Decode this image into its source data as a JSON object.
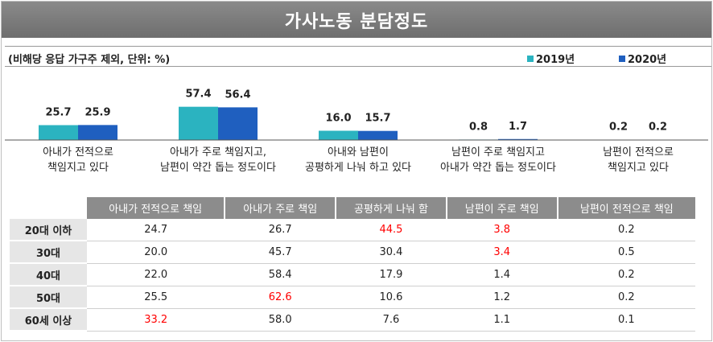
{
  "title": "가사노동 분담정도",
  "subtitle": "(비해당 응답 가구주 제외, 단위: %)",
  "colors": {
    "series_2019": "#2bb3c0",
    "series_2020": "#1f5fbf",
    "highlight": "#ff0000",
    "header_bg": "#8c8c8c"
  },
  "chart_data": {
    "type": "bar",
    "categories": [
      [
        "아내가 전적으로",
        "책임지고 있다"
      ],
      [
        "아내가 주로 책임지고,",
        "남편이 약간 돕는 정도이다"
      ],
      [
        "아내와 남편이",
        "공평하게 나눠 하고 있다"
      ],
      [
        "남편이 주로 책임지고",
        "아내가 약간 돕는 정도이다"
      ],
      [
        "남편이 전적으로",
        "책임지고 있다"
      ]
    ],
    "series": [
      {
        "name": "2019년",
        "values": [
          25.7,
          57.4,
          16.0,
          0.8,
          0.2
        ]
      },
      {
        "name": "2020년",
        "values": [
          25.9,
          56.4,
          15.7,
          1.7,
          0.2
        ]
      }
    ],
    "value_labels": [
      [
        "25.7",
        "57.4",
        "16.0",
        "0.8",
        "0.2"
      ],
      [
        "25.9",
        "56.4",
        "15.7",
        "1.7",
        "0.2"
      ]
    ],
    "legend_position": "top-right"
  },
  "table": {
    "columns": [
      "아내가 전적으로 책임",
      "아내가 주로 책임",
      "공평하게 나눠 함",
      "남편이 주로 책임",
      "남편이 전적으로 책임"
    ],
    "rows": [
      {
        "label": "20대 이하",
        "values": [
          "24.7",
          "26.7",
          "44.5",
          "3.8",
          "0.2"
        ],
        "highlight": [
          false,
          false,
          true,
          true,
          false
        ]
      },
      {
        "label": "30대",
        "values": [
          "20.0",
          "45.7",
          "30.4",
          "3.4",
          "0.5"
        ],
        "highlight": [
          false,
          false,
          false,
          true,
          false
        ]
      },
      {
        "label": "40대",
        "values": [
          "22.0",
          "58.4",
          "17.9",
          "1.4",
          "0.2"
        ],
        "highlight": [
          false,
          false,
          false,
          false,
          false
        ]
      },
      {
        "label": "50대",
        "values": [
          "25.5",
          "62.6",
          "10.6",
          "1.2",
          "0.2"
        ],
        "highlight": [
          false,
          true,
          false,
          false,
          false
        ]
      },
      {
        "label": "60세 이상",
        "values": [
          "33.2",
          "58.0",
          "7.6",
          "1.1",
          "0.1"
        ],
        "highlight": [
          true,
          false,
          false,
          false,
          false
        ]
      }
    ]
  }
}
